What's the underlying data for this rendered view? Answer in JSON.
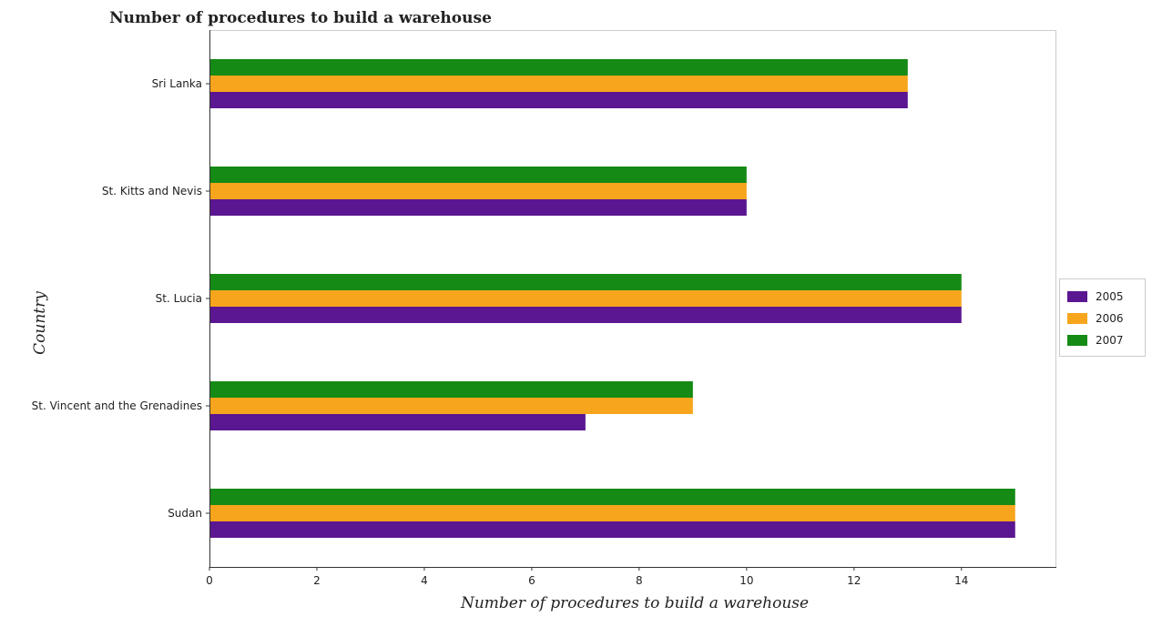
{
  "chart_data": {
    "type": "bar",
    "orientation": "horizontal",
    "title": "Number of procedures to build a warehouse",
    "xlabel": "Number of procedures to build a warehouse",
    "ylabel": "Country",
    "categories": [
      "Sri Lanka",
      "St. Kitts and Nevis",
      "St. Lucia",
      "St. Vincent and the Grenadines",
      "Sudan"
    ],
    "series": [
      {
        "name": "2005",
        "color": "#5b1691",
        "values": [
          13,
          10,
          14,
          7,
          15
        ]
      },
      {
        "name": "2006",
        "color": "#f7a51c",
        "values": [
          13,
          10,
          14,
          9,
          15
        ]
      },
      {
        "name": "2007",
        "color": "#158a15",
        "values": [
          13,
          10,
          14,
          9,
          15
        ]
      }
    ],
    "xlim": [
      0,
      15.75
    ],
    "xticks": [
      "0",
      "2",
      "4",
      "6",
      "8",
      "10",
      "12",
      "14"
    ],
    "legend_position": "right",
    "grid": false
  }
}
